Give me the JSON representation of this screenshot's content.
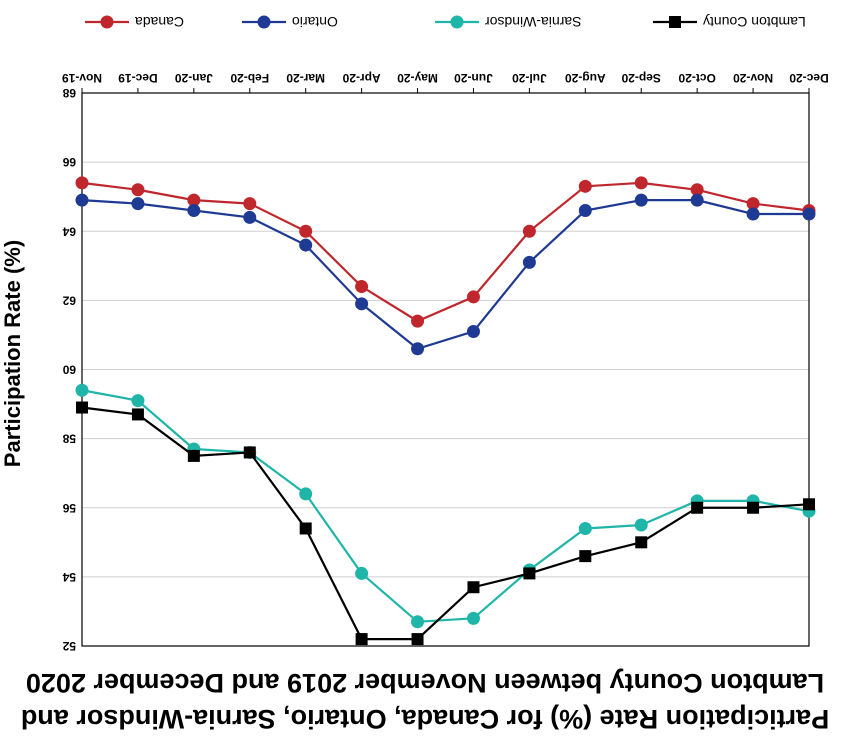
{
  "chart_data": {
    "type": "line",
    "title_lines": [
      "Participation Rate (%) for Canada, Ontario, Sarnia-Windsor and",
      "Lambton County between November 2019 and December 2020"
    ],
    "xlabel": "",
    "ylabel": "Participation Rate (%)",
    "categories": [
      "Nov-19",
      "Dec-19",
      "Jan-20",
      "Feb-20",
      "Mar-20",
      "Apr-20",
      "May-20",
      "Jun-20",
      "Jul-20",
      "Aug-20",
      "Sep-20",
      "Oct-20",
      "Nov-20",
      "Dec-20"
    ],
    "ylim": [
      52,
      68
    ],
    "yticks": [
      "52",
      "54",
      "56",
      "58",
      "60",
      "62",
      "64",
      "66",
      "68"
    ],
    "grid": true,
    "legend_position": "top",
    "series": [
      {
        "name": "Canada",
        "color": "#c0272d",
        "marker": "circle",
        "values": [
          65.4,
          65.2,
          64.9,
          64.8,
          64.0,
          62.4,
          61.4,
          62.1,
          64.0,
          65.3,
          65.4,
          65.2,
          64.8,
          64.6
        ]
      },
      {
        "name": "Ontario",
        "color": "#1f3a93",
        "marker": "circle",
        "values": [
          64.9,
          64.8,
          64.6,
          64.4,
          63.6,
          61.9,
          60.6,
          61.1,
          63.1,
          64.6,
          64.9,
          64.9,
          64.5,
          64.5
        ]
      },
      {
        "name": "Sarnia-Windsor",
        "color": "#1fb5a8",
        "marker": "circle",
        "values": [
          59.4,
          59.1,
          57.7,
          57.6,
          56.4,
          54.1,
          52.7,
          52.8,
          54.2,
          55.4,
          55.5,
          56.2,
          56.2,
          55.9
        ]
      },
      {
        "name": "Lambton County",
        "color": "#000000",
        "marker": "square",
        "values": [
          58.9,
          58.7,
          57.5,
          57.6,
          55.4,
          52.2,
          52.2,
          53.7,
          54.1,
          54.6,
          55.0,
          56.0,
          56.0,
          56.1
        ]
      }
    ]
  }
}
